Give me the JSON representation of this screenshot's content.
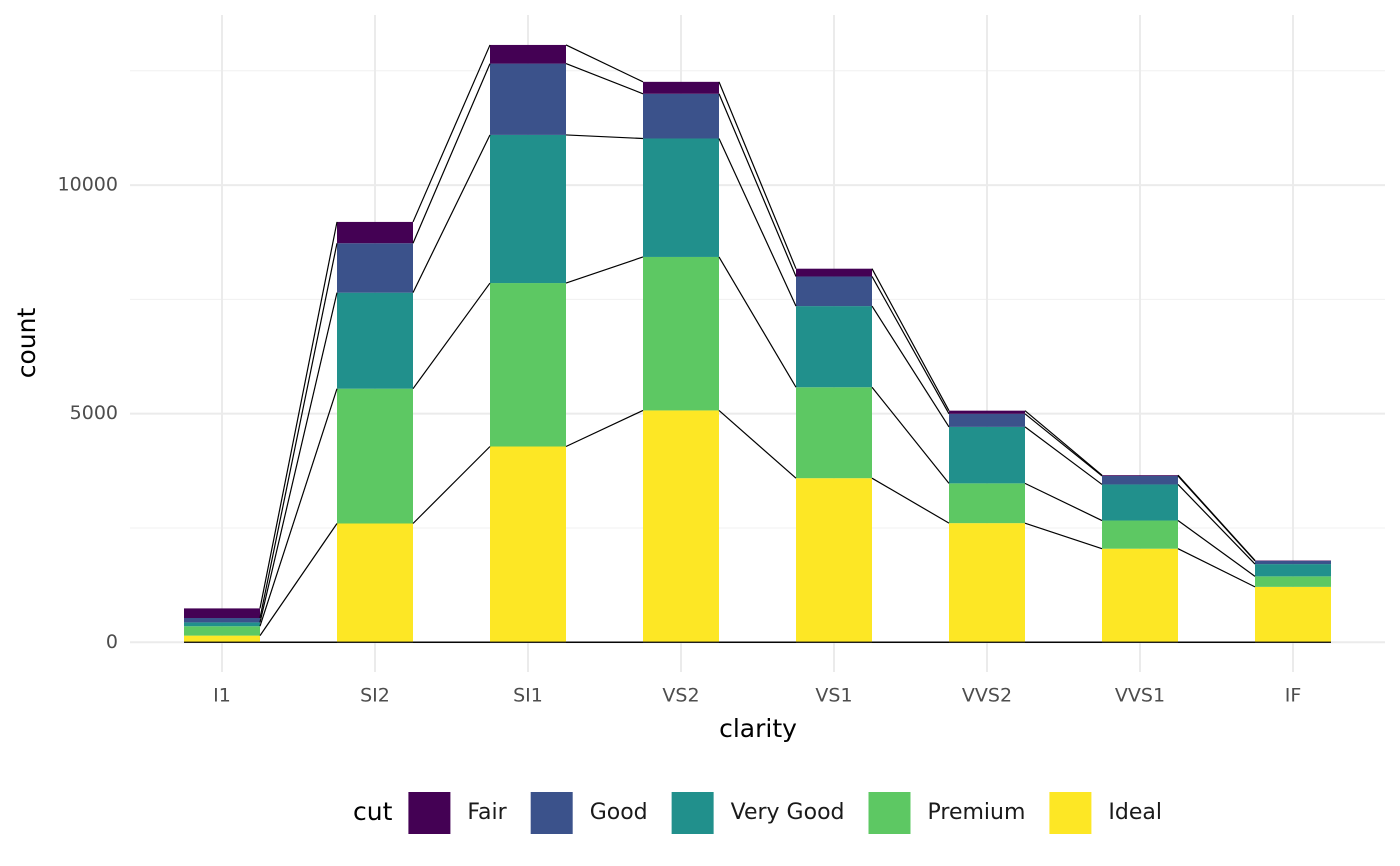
{
  "chart_data": {
    "type": "stacked_bar",
    "x_label": "clarity",
    "y_label": "count",
    "legend_title": "cut",
    "categories": [
      "I1",
      "SI2",
      "SI1",
      "VS2",
      "VS1",
      "VVS2",
      "VVS1",
      "IF"
    ],
    "series": [
      {
        "name": "Fair",
        "color": "#440154",
        "values": [
          210,
          466,
          408,
          261,
          170,
          69,
          17,
          9
        ]
      },
      {
        "name": "Good",
        "color": "#3B528B",
        "values": [
          96,
          1081,
          1560,
          978,
          648,
          286,
          186,
          71
        ]
      },
      {
        "name": "Very Good",
        "color": "#21908C",
        "values": [
          84,
          2100,
          3240,
          2591,
          1775,
          1235,
          789,
          268
        ]
      },
      {
        "name": "Premium",
        "color": "#5DC863",
        "values": [
          205,
          2949,
          3575,
          3357,
          1989,
          870,
          616,
          230
        ]
      },
      {
        "name": "Ideal",
        "color": "#FDE725",
        "values": [
          146,
          2598,
          4282,
          5071,
          3589,
          2606,
          2047,
          1212
        ]
      }
    ],
    "ylim": [
      -650,
      13720
    ],
    "yticks": [
      0,
      5000,
      10000
    ],
    "yminor": [
      2500,
      7500,
      12500
    ],
    "grid": true,
    "legend_position": "bottom"
  }
}
